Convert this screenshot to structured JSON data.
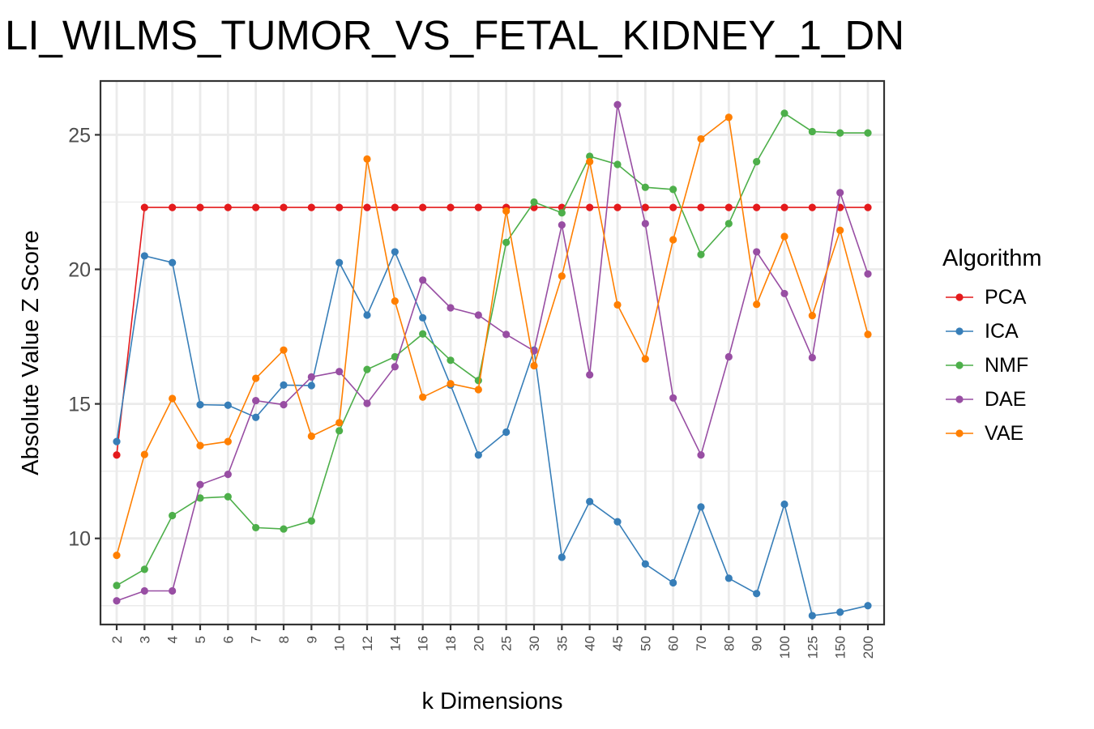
{
  "chart_data": {
    "type": "line",
    "title": "LI_WILMS_TUMOR_VS_FETAL_KIDNEY_1_DN",
    "xlabel": "k Dimensions",
    "ylabel": "Absolute Value Z Score",
    "categories": [
      "2",
      "3",
      "4",
      "5",
      "6",
      "7",
      "8",
      "9",
      "10",
      "12",
      "14",
      "16",
      "18",
      "20",
      "25",
      "30",
      "35",
      "40",
      "45",
      "50",
      "60",
      "70",
      "80",
      "90",
      "100",
      "125",
      "150",
      "200"
    ],
    "ylim": [
      6.8,
      27
    ],
    "yticks": [
      10,
      15,
      20,
      25
    ],
    "grid": true,
    "legend": {
      "title": "Algorithm",
      "placement": "right"
    },
    "series": [
      {
        "name": "PCA",
        "color": "#E41A1C",
        "values": [
          13.1,
          22.3,
          22.3,
          22.3,
          22.3,
          22.3,
          22.3,
          22.3,
          22.3,
          22.3,
          22.3,
          22.3,
          22.3,
          22.3,
          22.3,
          22.3,
          22.3,
          22.3,
          22.3,
          22.3,
          22.3,
          22.3,
          22.3,
          22.3,
          22.3,
          22.3,
          22.3,
          22.3
        ]
      },
      {
        "name": "ICA",
        "color": "#377EB8",
        "values": [
          13.6,
          20.5,
          20.25,
          14.97,
          14.95,
          14.5,
          15.7,
          15.68,
          20.25,
          18.3,
          20.65,
          18.2,
          15.7,
          13.1,
          13.95,
          17.0,
          9.3,
          11.37,
          10.62,
          9.05,
          8.35,
          11.17,
          8.52,
          7.95,
          11.27,
          7.13,
          7.26,
          7.5
        ]
      },
      {
        "name": "NMF",
        "color": "#4DAF4A",
        "values": [
          8.25,
          8.85,
          10.85,
          11.5,
          11.55,
          10.4,
          10.35,
          10.65,
          14.0,
          16.28,
          16.75,
          17.6,
          16.62,
          15.87,
          21.0,
          22.5,
          22.1,
          24.2,
          23.9,
          23.05,
          22.97,
          20.55,
          21.7,
          24.0,
          25.8,
          25.12,
          25.07,
          25.07
        ]
      },
      {
        "name": "DAE",
        "color": "#984EA3",
        "values": [
          7.68,
          8.05,
          8.05,
          12.0,
          12.38,
          15.12,
          14.97,
          16.0,
          16.2,
          15.02,
          16.38,
          19.6,
          18.57,
          18.3,
          17.58,
          16.97,
          21.65,
          16.08,
          26.12,
          21.7,
          15.22,
          13.1,
          16.75,
          20.65,
          19.1,
          16.72,
          22.85,
          19.83
        ]
      },
      {
        "name": "VAE",
        "color": "#FF7F00",
        "values": [
          9.37,
          13.12,
          15.2,
          13.45,
          13.6,
          15.95,
          17.0,
          13.8,
          14.3,
          24.1,
          18.82,
          15.25,
          15.75,
          15.53,
          22.17,
          16.42,
          19.75,
          24.0,
          18.68,
          16.67,
          21.1,
          24.85,
          25.65,
          18.7,
          21.22,
          18.28,
          21.45,
          17.58
        ]
      }
    ]
  }
}
